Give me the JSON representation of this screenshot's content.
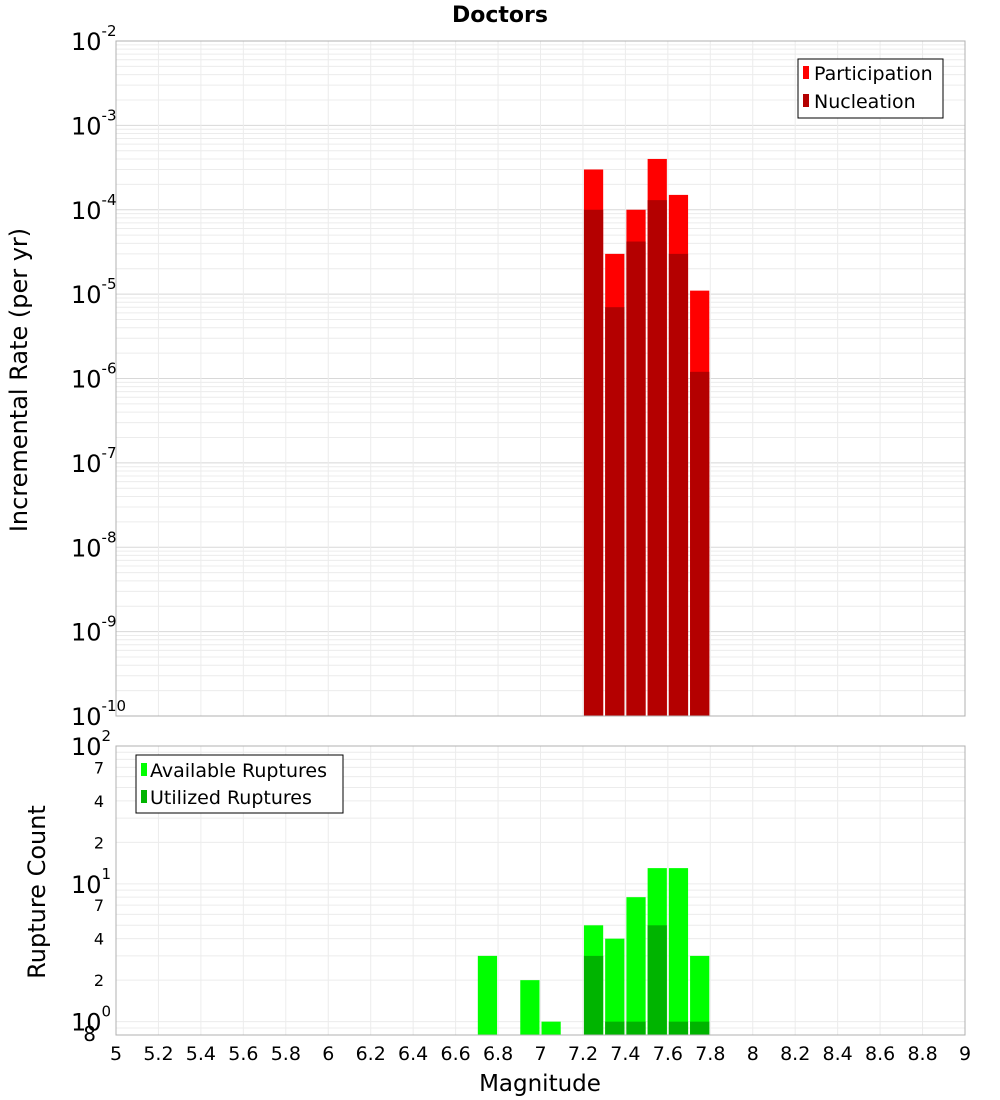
{
  "chart_data": [
    {
      "type": "bar",
      "title": "Doctors",
      "xlabel": "",
      "ylabel": "Incremental Rate (per yr)",
      "yscale": "log",
      "ylim": [
        1e-10,
        0.01
      ],
      "xlim": [
        5,
        9
      ],
      "grid": true,
      "legend_position": "top-right",
      "ytick_labels": [
        {
          "base": "10",
          "exp": "-2"
        },
        {
          "base": "10",
          "exp": "-3"
        },
        {
          "base": "10",
          "exp": "-4"
        },
        {
          "base": "10",
          "exp": "-5"
        },
        {
          "base": "10",
          "exp": "-6"
        },
        {
          "base": "10",
          "exp": "-7"
        },
        {
          "base": "10",
          "exp": "-8"
        },
        {
          "base": "10",
          "exp": "-9"
        },
        {
          "base": "10",
          "exp": "-10"
        }
      ],
      "x": [
        7.25,
        7.35,
        7.45,
        7.55,
        7.65,
        7.75
      ],
      "bar_width": 0.1,
      "series": [
        {
          "name": "Participation",
          "color": "#ff0000",
          "values": [
            0.0003,
            3e-05,
            0.0001,
            0.0004,
            0.00015,
            1.1e-05
          ]
        },
        {
          "name": "Nucleation",
          "color": "#b40000",
          "values": [
            0.0001,
            7e-06,
            4.2e-05,
            0.00013,
            3e-05,
            1.2e-06
          ]
        }
      ]
    },
    {
      "type": "bar",
      "title": "",
      "xlabel": "Magnitude",
      "ylabel": "Rupture Count",
      "yscale": "log",
      "ylim": [
        0.8,
        100
      ],
      "xlim": [
        5,
        9
      ],
      "grid": true,
      "legend_position": "top-left",
      "ytick_labels": [
        {
          "base": "10",
          "exp": "2"
        },
        {
          "base": "7",
          "exp": ""
        },
        {
          "base": "4",
          "exp": ""
        },
        {
          "base": "2",
          "exp": ""
        },
        {
          "base": "10",
          "exp": "1"
        },
        {
          "base": "7",
          "exp": ""
        },
        {
          "base": "4",
          "exp": ""
        },
        {
          "base": "2",
          "exp": ""
        },
        {
          "base": "10",
          "exp": "0"
        },
        {
          "base": "8",
          "exp": ""
        }
      ],
      "xtick_labels": [
        "5",
        "5.2",
        "5.4",
        "5.6",
        "5.8",
        "6",
        "6.2",
        "6.4",
        "6.6",
        "6.8",
        "7",
        "7.2",
        "7.4",
        "7.6",
        "7.8",
        "8",
        "8.2",
        "8.4",
        "8.6",
        "8.8",
        "9"
      ],
      "x": [
        6.75,
        6.95,
        7.05,
        7.25,
        7.35,
        7.45,
        7.55,
        7.65,
        7.75
      ],
      "bar_width": 0.1,
      "series": [
        {
          "name": "Available Ruptures",
          "color": "#00ff00",
          "values": [
            3,
            2,
            1,
            5,
            4,
            8,
            13,
            13,
            3
          ]
        },
        {
          "name": "Utilized Ruptures",
          "color": "#00b400",
          "values": [
            0,
            0,
            0,
            3,
            1,
            1,
            5,
            1,
            1
          ]
        }
      ]
    }
  ]
}
